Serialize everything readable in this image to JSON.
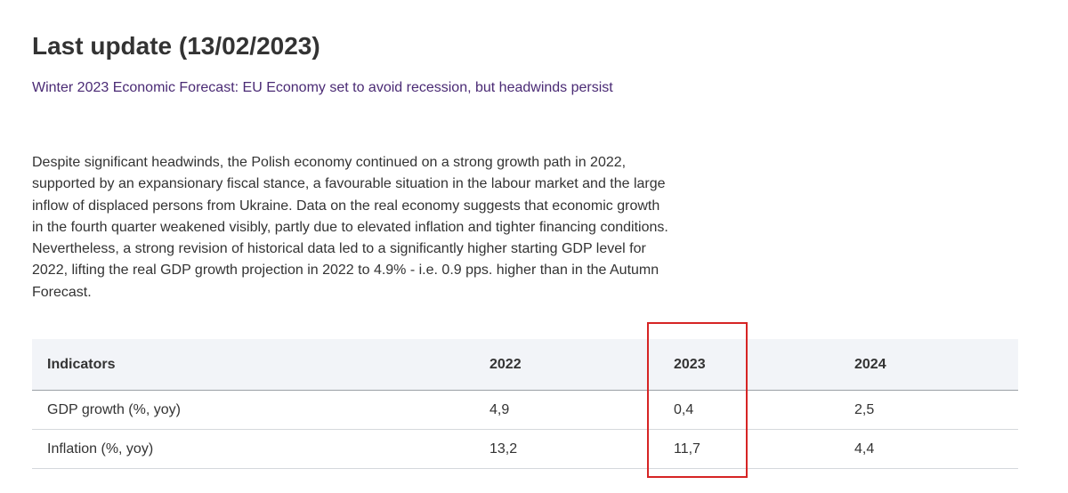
{
  "page": {
    "title": "Last update (13/02/2023)",
    "forecast_link": "Winter 2023 Economic Forecast: EU Economy set to avoid recession, but headwinds persist",
    "paragraph": "Despite significant headwinds, the Polish economy continued on a strong growth path in 2022, supported by an expansionary fiscal stance, a favourable situation in the labour market and the large inflow of displaced persons from Ukraine. Data on the real economy suggests that economic growth in the fourth quarter weakened visibly, partly due to elevated inflation and tighter financing conditions. Nevertheless, a strong revision of historical data led to a significantly higher starting GDP level for 2022, lifting the real GDP growth projection in 2022 to 4.9% - i.e. 0.9 pps. higher than in the Autumn Forecast."
  },
  "table": {
    "headers": [
      "Indicators",
      "2022",
      "2023",
      "2024"
    ],
    "rows": [
      [
        "GDP growth (%, yoy)",
        "4,9",
        "0,4",
        "2,5"
      ],
      [
        "Inflation (%, yoy)",
        "13,2",
        "11,7",
        "4,4"
      ]
    ]
  },
  "highlight": {
    "color": "#d62424",
    "column": "2023"
  }
}
